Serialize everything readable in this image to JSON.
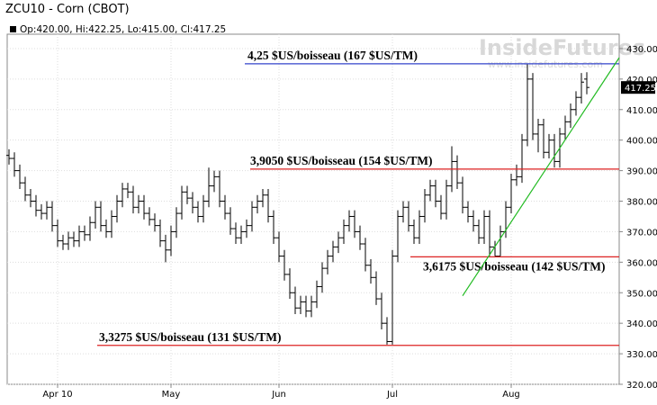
{
  "chart_data": {
    "type": "ohlc",
    "title": "ZCU10 - Corn (CBOT)",
    "ohlc_readout": "Op:420.00, Hi:422.25, Lo:415.00, Cl:417.25",
    "watermark": "InsideFutures",
    "watermark_url": "www.insidefutures.com",
    "categories": [
      null,
      null,
      null,
      null,
      null,
      null,
      null,
      null,
      null,
      "Apr 10",
      null,
      null,
      null,
      null,
      null,
      null,
      null,
      null,
      null,
      null,
      null,
      null,
      null,
      null,
      null,
      null,
      null,
      null,
      null,
      null,
      "May",
      null,
      null,
      null,
      null,
      null,
      null,
      null,
      null,
      null,
      null,
      null,
      null,
      null,
      null,
      null,
      null,
      null,
      null,
      null,
      "Jun",
      null,
      null,
      null,
      null,
      null,
      null,
      null,
      null,
      null,
      null,
      null,
      null,
      null,
      null,
      null,
      null,
      null,
      null,
      null,
      null,
      "Jul",
      null,
      null,
      null,
      null,
      null,
      null,
      null,
      null,
      null,
      null,
      null,
      null,
      null,
      null,
      null,
      null,
      null,
      null,
      null,
      null,
      null,
      "Aug",
      null,
      null,
      null,
      null,
      null,
      null,
      null,
      null,
      null,
      null,
      null,
      null,
      null,
      null
    ],
    "open": [
      395,
      394,
      390,
      386,
      382,
      380,
      377,
      376,
      378,
      372,
      367,
      366,
      368,
      367,
      370,
      369,
      373,
      378,
      372,
      370,
      375,
      380,
      384,
      383,
      378,
      380,
      376,
      374,
      372,
      367,
      364,
      370,
      376,
      383,
      381,
      378,
      375,
      380,
      385,
      388,
      380,
      376,
      371,
      368,
      370,
      372,
      378,
      380,
      382,
      375,
      368,
      362,
      356,
      350,
      345,
      347,
      344,
      347,
      352,
      358,
      362,
      365,
      368,
      372,
      375,
      370,
      366,
      359,
      355,
      348,
      340,
      334,
      362,
      375,
      378,
      372,
      368,
      375,
      382,
      385,
      380,
      376,
      385,
      393,
      386,
      378,
      375,
      372,
      368,
      375,
      365,
      362,
      370,
      378,
      387,
      388,
      400,
      420,
      402,
      405,
      396,
      400,
      393,
      402,
      406,
      410,
      414,
      420
    ],
    "high": [
      397,
      396,
      392,
      388,
      384,
      382,
      379,
      380,
      380,
      374,
      369,
      370,
      370,
      372,
      372,
      375,
      380,
      380,
      374,
      377,
      382,
      386,
      386,
      385,
      382,
      382,
      378,
      376,
      374,
      369,
      372,
      378,
      385,
      385,
      383,
      380,
      382,
      391,
      390,
      390,
      382,
      378,
      373,
      372,
      374,
      380,
      382,
      384,
      384,
      377,
      370,
      364,
      358,
      352,
      349,
      349,
      349,
      354,
      360,
      364,
      367,
      370,
      374,
      377,
      377,
      372,
      368,
      361,
      357,
      350,
      342,
      364,
      377,
      380,
      380,
      374,
      377,
      384,
      387,
      387,
      382,
      387,
      398,
      395,
      388,
      380,
      377,
      374,
      377,
      377,
      367,
      372,
      380,
      389,
      392,
      402,
      425,
      422,
      407,
      407,
      402,
      402,
      404,
      408,
      412,
      416,
      422,
      422.25
    ],
    "low": [
      392,
      388,
      384,
      380,
      378,
      375,
      374,
      374,
      370,
      365,
      364,
      364,
      365,
      365,
      367,
      367,
      371,
      370,
      368,
      368,
      373,
      378,
      381,
      376,
      376,
      374,
      372,
      370,
      365,
      360,
      362,
      368,
      374,
      379,
      376,
      373,
      373,
      378,
      383,
      378,
      374,
      369,
      366,
      366,
      368,
      370,
      376,
      378,
      373,
      366,
      360,
      354,
      348,
      343,
      343,
      342,
      342,
      345,
      350,
      356,
      360,
      363,
      366,
      370,
      368,
      364,
      357,
      353,
      346,
      338,
      333,
      333,
      360,
      373,
      370,
      366,
      366,
      373,
      380,
      378,
      374,
      374,
      383,
      384,
      376,
      373,
      370,
      366,
      366,
      362,
      362,
      362,
      368,
      376,
      385,
      386,
      398,
      400,
      396,
      394,
      394,
      391,
      391,
      400,
      404,
      408,
      412,
      415
    ],
    "close": [
      394,
      390,
      386,
      382,
      380,
      377,
      376,
      378,
      372,
      367,
      366,
      368,
      367,
      370,
      369,
      373,
      378,
      372,
      370,
      375,
      380,
      384,
      383,
      378,
      380,
      376,
      374,
      372,
      367,
      364,
      370,
      376,
      383,
      381,
      378,
      375,
      380,
      385,
      388,
      380,
      376,
      371,
      368,
      370,
      372,
      378,
      380,
      382,
      375,
      368,
      362,
      356,
      350,
      345,
      347,
      344,
      347,
      352,
      358,
      362,
      365,
      368,
      372,
      375,
      370,
      366,
      359,
      355,
      348,
      340,
      334,
      362,
      375,
      378,
      372,
      368,
      375,
      382,
      385,
      380,
      376,
      385,
      393,
      386,
      378,
      375,
      372,
      368,
      375,
      365,
      362,
      370,
      378,
      387,
      388,
      400,
      420,
      402,
      405,
      396,
      400,
      393,
      402,
      406,
      410,
      414,
      419,
      417.25
    ],
    "color": "#000000",
    "ylim": [
      320,
      434.7
    ],
    "yticks": [
      {
        "value": 320,
        "label": "320.00"
      },
      {
        "value": 330,
        "label": "330.00"
      },
      {
        "value": 340,
        "label": "340.00"
      },
      {
        "value": 350,
        "label": "350.00"
      },
      {
        "value": 360,
        "label": "360.00"
      },
      {
        "value": 370,
        "label": "370.00"
      },
      {
        "value": 380,
        "label": "380.00"
      },
      {
        "value": 390,
        "label": "390.00"
      },
      {
        "value": 400,
        "label": "400.00"
      },
      {
        "value": 410,
        "label": "410.00"
      },
      {
        "value": 420,
        "label": "420.00"
      },
      {
        "value": 430,
        "label": "430.00"
      }
    ],
    "grid": true,
    "annotations": [
      {
        "text": "4,25 $US/boisseau (167 $US/TM)",
        "level": 425,
        "color": "#3344cc"
      },
      {
        "text": "3,9050 $US/boisseau (154 $US/TM)",
        "level": 390.5,
        "color": "#dd2222"
      },
      {
        "text": "3,6175 $US/boisseau (142 $US/TM)",
        "level": 361.75,
        "color": "#dd2222"
      },
      {
        "text": "3,3275 $US/boisseau (131 $US/TM)",
        "level": 332.75,
        "color": "#dd2222"
      }
    ],
    "trendline": {
      "color": "#22bb22",
      "x": [
        84,
        113
      ],
      "y": [
        349,
        427
      ]
    }
  }
}
